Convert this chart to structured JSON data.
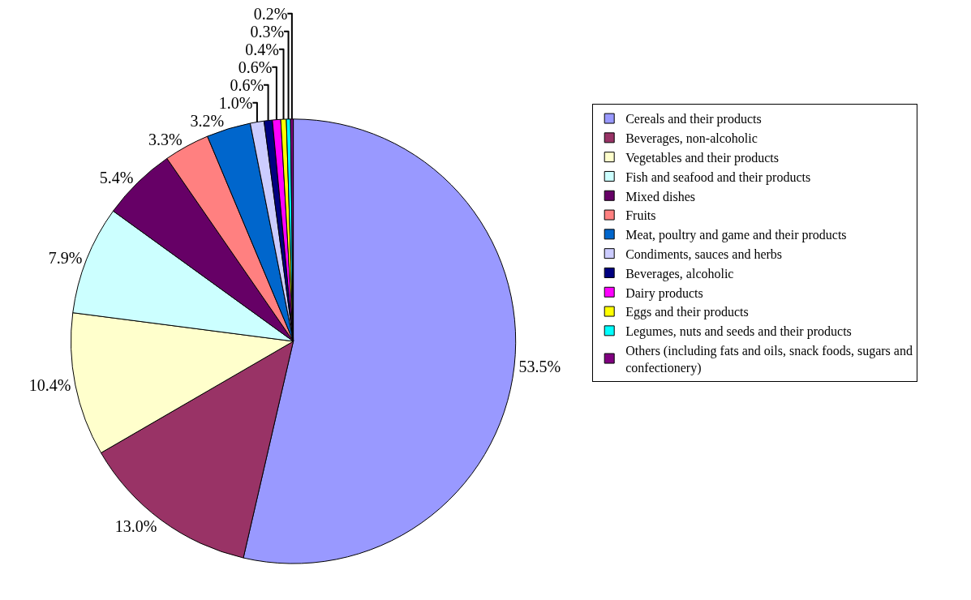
{
  "chart_data": {
    "type": "pie",
    "categories": [
      "Cereals and their products",
      "Beverages, non-alcoholic",
      "Vegetables and their products",
      "Fish and seafood and their products",
      "Mixed dishes",
      "Fruits",
      "Meat, poultry and game and their products",
      "Condiments, sauces and herbs",
      "Beverages, alcoholic",
      "Dairy products",
      "Eggs and their products",
      "Legumes, nuts and seeds and their products",
      "Others (including fats and oils, snack foods, sugars and confectionery)"
    ],
    "values": [
      53.5,
      13.0,
      10.4,
      7.9,
      5.4,
      3.3,
      3.2,
      1.0,
      0.6,
      0.6,
      0.4,
      0.3,
      0.2
    ],
    "value_labels": [
      "53.5%",
      "13.0%",
      "10.4%",
      "7.9%",
      "5.4%",
      "3.3%",
      "3.2%",
      "1.0%",
      "0.6%",
      "0.6%",
      "0.4%",
      "0.3%",
      "0.2%"
    ],
    "colors": [
      "#9999ff",
      "#993366",
      "#ffffcc",
      "#ccffff",
      "#660066",
      "#ff8080",
      "#0066cc",
      "#ccccff",
      "#000080",
      "#ff00ff",
      "#ffff00",
      "#00ffff",
      "#800080"
    ],
    "legend": "right"
  }
}
